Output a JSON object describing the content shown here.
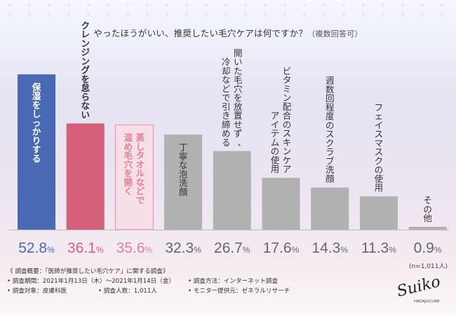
{
  "chart_data": {
    "type": "bar",
    "title": "やったほうがいい、推奨したい毛穴ケアは何ですか？",
    "title_note": "（複数回答可）",
    "categories": [
      "保湿をしっかりする",
      "クレンジングを怠らない",
      "蒸しタオルなどで温め毛穴を開く",
      "丁寧な泡洗顔",
      "開いた毛穴を放置せず、冷却などで引き締める",
      "ビタミン配合のスキンケアアイテムの使用",
      "週数回程度のスクラブ洗顔",
      "フェイスマスクの使用",
      "その他"
    ],
    "label_columns": [
      [
        "保湿をしっかりする"
      ],
      [
        "クレンジングを怠らない"
      ],
      [
        "蒸しタオルなどで",
        "温め毛穴を開く"
      ],
      [
        "丁寧な泡洗顔"
      ],
      [
        "開いた毛穴を放置せず、",
        "冷却などで引き締める"
      ],
      [
        "ビタミン配合のスキンケア",
        "アイテムの使用"
      ],
      [
        "週数回程度のスクラブ洗顔"
      ],
      [
        "フェイスマスクの使用"
      ],
      [
        "その他"
      ]
    ],
    "values": [
      52.8,
      36.1,
      35.6,
      32.3,
      26.7,
      17.6,
      14.3,
      11.3,
      0.9
    ],
    "value_labels": [
      "52.8",
      "36.1",
      "35.6",
      "32.3",
      "26.7",
      "17.6",
      "14.3",
      "11.3",
      "0.9"
    ],
    "unit": "%",
    "ylim": [
      0,
      55
    ],
    "bar_colors": [
      "#4a69b5",
      "#d4607c",
      "#ea9cb3",
      "#b1b1b1",
      "#b1b1b1",
      "#b1b1b1",
      "#b1b1b1",
      "#b1b1b1",
      "#b1b1b1"
    ],
    "bar_fills": [
      "#4a69b5",
      "#d4607c",
      "#f7dfe7",
      "#b1b1b1",
      "#b1b1b1",
      "#b1b1b1",
      "#b1b1b1",
      "#b1b1b1",
      "#b1b1b1"
    ],
    "label_colors": [
      "#ffffff",
      "#d4607c",
      "#e27f9b",
      "#333333",
      "#333333",
      "#333333",
      "#333333",
      "#333333",
      "#333333"
    ],
    "value_colors": [
      "#4a69b5",
      "#d4607c",
      "#e27f9b",
      "#666666",
      "#666666",
      "#666666",
      "#666666",
      "#666666",
      "#666666"
    ],
    "n_label": "(n=1,011人)"
  },
  "footer": {
    "overview": "《 調査概要：「医師が推奨したい毛穴ケア」に関する調査》",
    "period": "• 調査期間：2021年1月13日（木）〜2021年1月14日（金）",
    "method": "• 調査方法：インターネット調査",
    "target": "• 調査対象：皮膚科医",
    "count": "• 調査人数：1,011人",
    "provider": "• モニター提供元：ゼネラルリサーチ"
  },
  "logo": {
    "script": "Suiko",
    "sub": "HADAJUCURE"
  }
}
